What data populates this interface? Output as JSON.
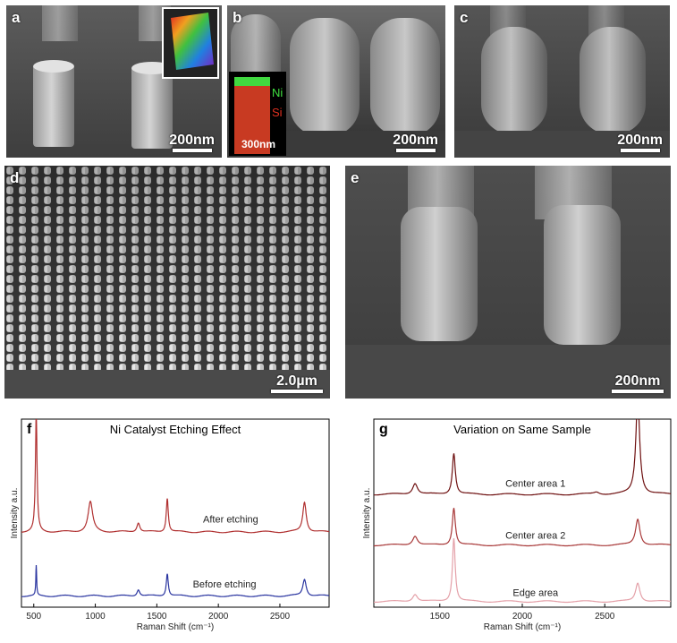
{
  "panels": {
    "a": {
      "label": "a",
      "scale": "200nm"
    },
    "b": {
      "label": "b",
      "scale": "200nm",
      "inset_scale": "300nm",
      "inset_ni": "Ni",
      "inset_si": "Si"
    },
    "c": {
      "label": "c",
      "scale": "200nm"
    },
    "d": {
      "label": "d",
      "scale": "2.0µm"
    },
    "e": {
      "label": "e",
      "scale": "200nm"
    }
  },
  "colors": {
    "after": "#b03030",
    "before": "#2a35a0",
    "center1": "#6e1010",
    "center2": "#a83838",
    "edge": "#e4a0a8",
    "inset_ni": "#40e040",
    "inset_si": "#e03020"
  },
  "chart_data": [
    {
      "panel_label": "f",
      "type": "line",
      "title": "Ni Catalyst Etching Effect",
      "xlabel": "Raman Shift (cm⁻¹)",
      "ylabel": "Intensity a.u.",
      "xlim": [
        400,
        2900
      ],
      "xticks": [
        500,
        1000,
        1500,
        2000,
        2500
      ],
      "series": [
        {
          "name": "After etching",
          "color": "#b03030",
          "baseline": 0.4,
          "peaks": [
            [
              520,
              0.62,
              8
            ],
            [
              960,
              0.16,
              22
            ],
            [
              1350,
              0.05,
              15
            ],
            [
              1585,
              0.18,
              10
            ],
            [
              2700,
              0.16,
              17
            ]
          ]
        },
        {
          "name": "Before etching",
          "color": "#2a35a0",
          "baseline": 0.06,
          "peaks": [
            [
              520,
              0.16,
              4
            ],
            [
              1350,
              0.035,
              14
            ],
            [
              1585,
              0.12,
              10
            ],
            [
              2700,
              0.09,
              17
            ]
          ]
        }
      ]
    },
    {
      "panel_label": "g",
      "type": "line",
      "title": "Variation on Same Sample",
      "xlabel": "Raman Shift (cm⁻¹)",
      "ylabel": "Intensity a.u.",
      "xlim": [
        1100,
        2900
      ],
      "xticks": [
        1500,
        2000,
        2500
      ],
      "series": [
        {
          "name": "Center area 1",
          "color": "#6e1010",
          "baseline": 0.6,
          "peaks": [
            [
              1350,
              0.06,
              18
            ],
            [
              1585,
              0.22,
              11
            ],
            [
              2450,
              0.012,
              20
            ],
            [
              2700,
              0.52,
              14
            ]
          ]
        },
        {
          "name": "Center area 2",
          "color": "#a83838",
          "baseline": 0.33,
          "peaks": [
            [
              1350,
              0.05,
              18
            ],
            [
              1585,
              0.2,
              11
            ],
            [
              2700,
              0.14,
              16
            ]
          ]
        },
        {
          "name": "Edge area",
          "color": "#e4a0a8",
          "baseline": 0.03,
          "peaks": [
            [
              1350,
              0.04,
              18
            ],
            [
              1585,
              0.34,
              10
            ],
            [
              2700,
              0.1,
              16
            ]
          ]
        }
      ]
    }
  ]
}
